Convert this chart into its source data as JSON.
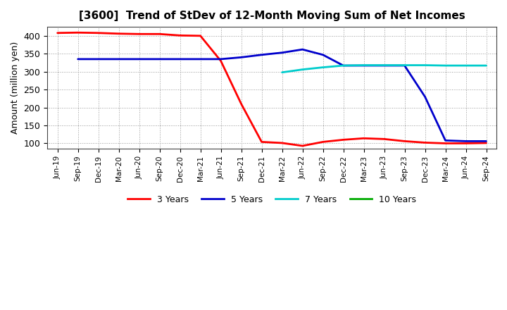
{
  "title": "[3600]  Trend of StDev of 12-Month Moving Sum of Net Incomes",
  "ylabel": "Amount (million yen)",
  "background_color": "#ffffff",
  "grid_color": "#aaaaaa",
  "ylim": [
    85,
    425
  ],
  "yticks": [
    100,
    150,
    200,
    250,
    300,
    350,
    400
  ],
  "x_labels": [
    "Jun-19",
    "Sep-19",
    "Dec-19",
    "Mar-20",
    "Jun-20",
    "Sep-20",
    "Dec-20",
    "Mar-21",
    "Jun-21",
    "Sep-21",
    "Dec-21",
    "Mar-22",
    "Jun-22",
    "Sep-22",
    "Dec-22",
    "Mar-23",
    "Jun-23",
    "Sep-23",
    "Dec-23",
    "Mar-24",
    "Jun-24",
    "Sep-24"
  ],
  "series": {
    "3 Years": {
      "color": "#ff0000",
      "linewidth": 2.0,
      "data_x": [
        0,
        1,
        2,
        3,
        4,
        5,
        6,
        7,
        8,
        9,
        10,
        11,
        12,
        13,
        14,
        15,
        16,
        17,
        18,
        19,
        20,
        21
      ],
      "data_y": [
        408,
        409,
        408,
        406,
        405,
        405,
        401,
        400,
        330,
        210,
        104,
        101,
        93,
        104,
        110,
        114,
        112,
        106,
        102,
        100,
        100,
        101
      ]
    },
    "5 Years": {
      "color": "#0000cc",
      "linewidth": 2.0,
      "data_x": [
        1,
        2,
        3,
        4,
        5,
        6,
        7,
        8,
        9,
        10,
        11,
        12,
        13,
        14,
        15,
        16,
        17,
        18,
        19,
        20,
        21
      ],
      "data_y": [
        335,
        335,
        335,
        335,
        335,
        335,
        335,
        335,
        340,
        347,
        353,
        362,
        347,
        317,
        317,
        317,
        317,
        230,
        108,
        106,
        106
      ]
    },
    "7 Years": {
      "color": "#00cccc",
      "linewidth": 2.0,
      "data_x": [
        11,
        12,
        13,
        14,
        15,
        16,
        17,
        18,
        19,
        20,
        21
      ],
      "data_y": [
        298,
        306,
        312,
        317,
        318,
        318,
        318,
        318,
        317,
        317,
        317
      ]
    },
    "10 Years": {
      "color": "#00aa00",
      "linewidth": 2.0,
      "data_x": [],
      "data_y": []
    }
  },
  "legend_order": [
    "3 Years",
    "5 Years",
    "7 Years",
    "10 Years"
  ]
}
